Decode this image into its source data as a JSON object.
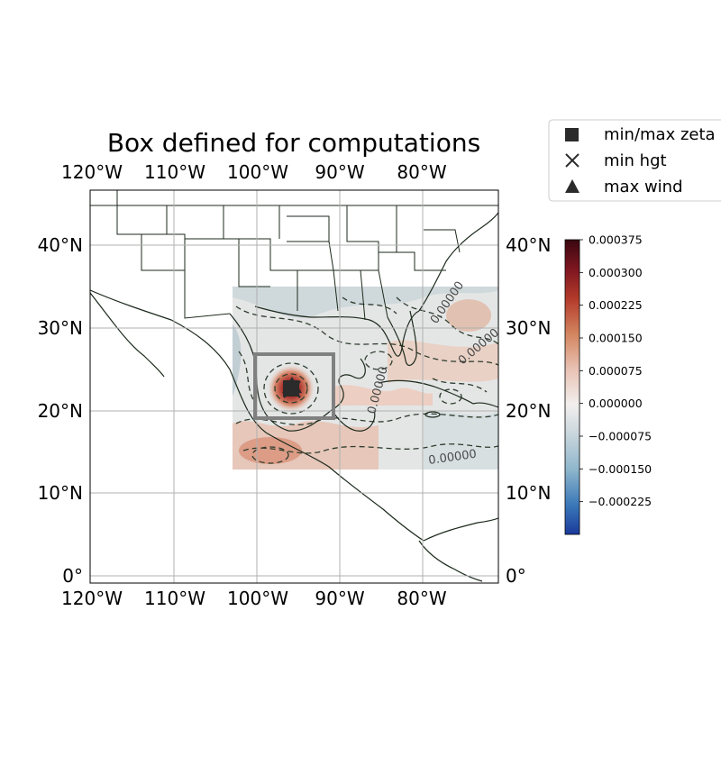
{
  "title": "Box defined for computations",
  "map": {
    "lon_ticks": [
      {
        "value": -120,
        "label": "120°W"
      },
      {
        "value": -110,
        "label": "110°W"
      },
      {
        "value": -100,
        "label": "100°W"
      },
      {
        "value": -90,
        "label": "90°W"
      },
      {
        "value": -80,
        "label": "80°W"
      }
    ],
    "lat_ticks": [
      {
        "value": 40,
        "label": "40°N"
      },
      {
        "value": 30,
        "label": "30°N"
      },
      {
        "value": 20,
        "label": "20°N"
      },
      {
        "value": 10,
        "label": "10°N"
      },
      {
        "value": 0,
        "label": "0°"
      }
    ],
    "extent": {
      "lon_min": -120,
      "lon_max": -71,
      "lat_min": -1,
      "lat_max": 46
    },
    "data_region": {
      "lon_min": -103,
      "lon_max": -71,
      "lat_min": 13,
      "lat_max": 35
    },
    "computation_box": {
      "lon_min": -100,
      "lon_max": -91,
      "lat_min": 19,
      "lat_max": 27
    },
    "contour_labels": [
      "0.00000",
      "0.00000",
      "0.00000",
      "0.00000"
    ],
    "markers": [
      {
        "type": "square",
        "lon": -95.5,
        "lat": 22.8
      },
      {
        "type": "x",
        "lon": -95.3,
        "lat": 22.9
      },
      {
        "type": "triangle",
        "lon": -95.2,
        "lat": 23.2
      }
    ],
    "colors": {
      "coast": "#1c2a1c",
      "grid": "#b0b0b0",
      "box": "#808080",
      "contour": "#2e3d2e"
    }
  },
  "legend": {
    "items": [
      {
        "marker": "square",
        "label": "min/max zeta"
      },
      {
        "marker": "x",
        "label": "min hgt"
      },
      {
        "marker": "triangle",
        "label": "max wind"
      }
    ]
  },
  "colorbar": {
    "ticks": [
      {
        "value": 0.000375,
        "label": "0.000375"
      },
      {
        "value": 0.0003,
        "label": "0.000300"
      },
      {
        "value": 0.000225,
        "label": "0.000225"
      },
      {
        "value": 0.00015,
        "label": "0.000150"
      },
      {
        "value": 7.5e-05,
        "label": "0.000075"
      },
      {
        "value": 0.0,
        "label": "0.000000"
      },
      {
        "value": -7.5e-05,
        "label": "−0.000075"
      },
      {
        "value": -0.00015,
        "label": "−0.000150"
      },
      {
        "value": -0.000225,
        "label": "−0.000225"
      }
    ],
    "vmin": -0.0003,
    "vmax": 0.000375,
    "colors": [
      "#1b3a9c",
      "#3a78b8",
      "#8eb6cc",
      "#c9d6dc",
      "#f2efee",
      "#e8c2b4",
      "#d3855f",
      "#b33a2a",
      "#7e1620",
      "#3a0710"
    ]
  }
}
